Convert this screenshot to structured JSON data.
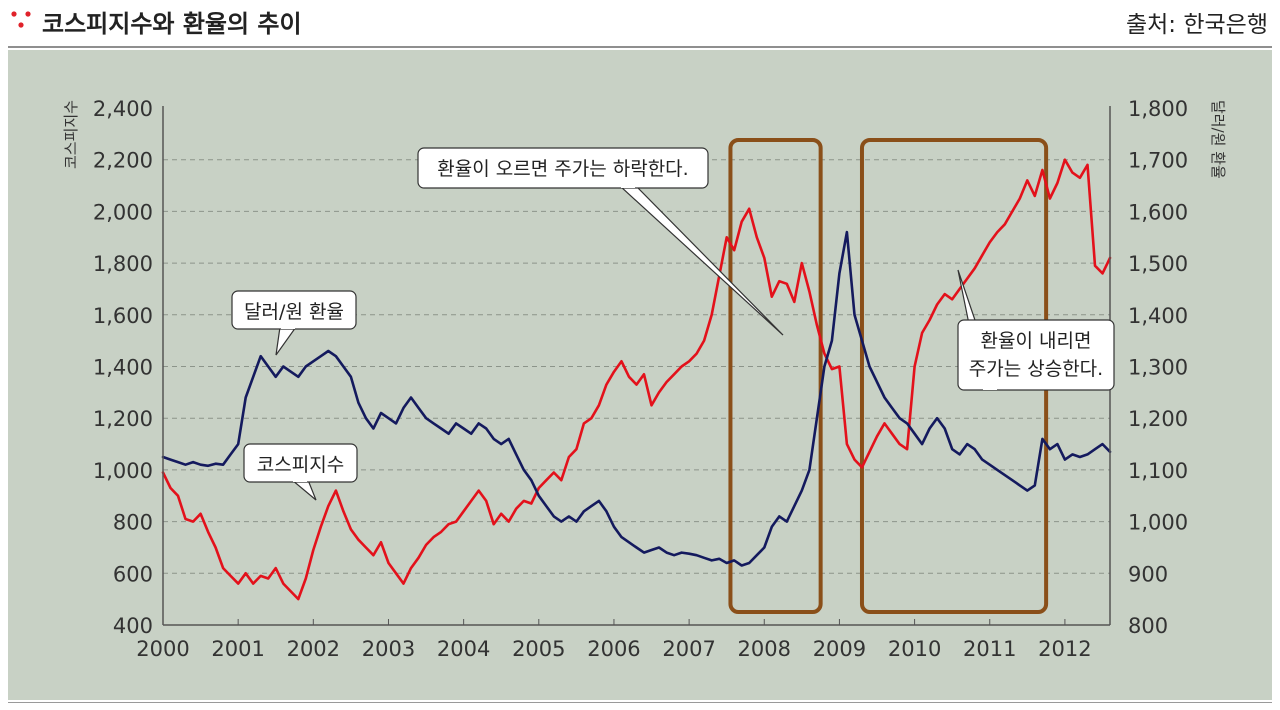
{
  "header": {
    "title": "코스피지수와 환율의 추이",
    "source": "출처: 한국은행"
  },
  "colors": {
    "panel_bg": "#c8d1c5",
    "kospi": "#141a5e",
    "fx": "#e3111b",
    "highlight_box": "#8a4f19",
    "grid": "#8c948a",
    "dots": "#e0222a"
  },
  "chart_data": {
    "type": "line",
    "title": "",
    "x_label": "",
    "y_left_label": "코스피지수",
    "y_right_label": "달러/원 환율",
    "x_range": [
      2000,
      2012.6
    ],
    "y_left_range": [
      400,
      2400
    ],
    "y_right_range": [
      800,
      1800
    ],
    "x_ticks": [
      "2000",
      "2001",
      "2002",
      "2003",
      "2004",
      "2005",
      "2006",
      "2007",
      "2008",
      "2009",
      "2010",
      "2011",
      "2012"
    ],
    "y_left_ticks": [
      "400",
      "600",
      "800",
      "1,000",
      "1,200",
      "1,400",
      "1,600",
      "1,800",
      "2,000",
      "2,200",
      "2,400"
    ],
    "y_right_ticks": [
      "800",
      "900",
      "1,000",
      "1,100",
      "1,200",
      "1,300",
      "1,400",
      "1,500",
      "1,600",
      "1,700",
      "1,800"
    ],
    "grid": "horizontal dashed",
    "series": [
      {
        "name": "코스피지수",
        "axis": "left",
        "points": [
          [
            2000.0,
            990
          ],
          [
            2000.1,
            930
          ],
          [
            2000.2,
            900
          ],
          [
            2000.3,
            810
          ],
          [
            2000.4,
            800
          ],
          [
            2000.5,
            830
          ],
          [
            2000.6,
            760
          ],
          [
            2000.7,
            700
          ],
          [
            2000.8,
            620
          ],
          [
            2000.9,
            590
          ],
          [
            2001.0,
            560
          ],
          [
            2001.1,
            600
          ],
          [
            2001.2,
            560
          ],
          [
            2001.3,
            590
          ],
          [
            2001.4,
            580
          ],
          [
            2001.5,
            620
          ],
          [
            2001.6,
            560
          ],
          [
            2001.7,
            530
          ],
          [
            2001.8,
            500
          ],
          [
            2001.9,
            580
          ],
          [
            2002.0,
            690
          ],
          [
            2002.1,
            780
          ],
          [
            2002.2,
            860
          ],
          [
            2002.3,
            920
          ],
          [
            2002.4,
            840
          ],
          [
            2002.5,
            770
          ],
          [
            2002.6,
            730
          ],
          [
            2002.7,
            700
          ],
          [
            2002.8,
            670
          ],
          [
            2002.9,
            720
          ],
          [
            2003.0,
            640
          ],
          [
            2003.1,
            600
          ],
          [
            2003.2,
            560
          ],
          [
            2003.3,
            620
          ],
          [
            2003.4,
            660
          ],
          [
            2003.5,
            710
          ],
          [
            2003.6,
            740
          ],
          [
            2003.7,
            760
          ],
          [
            2003.8,
            790
          ],
          [
            2003.9,
            800
          ],
          [
            2004.0,
            840
          ],
          [
            2004.1,
            880
          ],
          [
            2004.2,
            920
          ],
          [
            2004.3,
            880
          ],
          [
            2004.4,
            790
          ],
          [
            2004.5,
            830
          ],
          [
            2004.6,
            800
          ],
          [
            2004.7,
            850
          ],
          [
            2004.8,
            880
          ],
          [
            2004.9,
            870
          ],
          [
            2005.0,
            930
          ],
          [
            2005.1,
            960
          ],
          [
            2005.2,
            990
          ],
          [
            2005.3,
            960
          ],
          [
            2005.4,
            1050
          ],
          [
            2005.5,
            1080
          ],
          [
            2005.6,
            1180
          ],
          [
            2005.7,
            1200
          ],
          [
            2005.8,
            1250
          ],
          [
            2005.9,
            1330
          ],
          [
            2006.0,
            1380
          ],
          [
            2006.1,
            1420
          ],
          [
            2006.2,
            1360
          ],
          [
            2006.3,
            1330
          ],
          [
            2006.4,
            1370
          ],
          [
            2006.5,
            1250
          ],
          [
            2006.6,
            1300
          ],
          [
            2006.7,
            1340
          ],
          [
            2006.8,
            1370
          ],
          [
            2006.9,
            1400
          ],
          [
            2007.0,
            1420
          ],
          [
            2007.1,
            1450
          ],
          [
            2007.2,
            1500
          ],
          [
            2007.3,
            1600
          ],
          [
            2007.4,
            1750
          ],
          [
            2007.5,
            1900
          ],
          [
            2007.6,
            1850
          ],
          [
            2007.7,
            1960
          ],
          [
            2007.8,
            2010
          ],
          [
            2007.9,
            1900
          ],
          [
            2008.0,
            1820
          ],
          [
            2008.1,
            1670
          ],
          [
            2008.2,
            1730
          ],
          [
            2008.3,
            1720
          ],
          [
            2008.4,
            1650
          ],
          [
            2008.5,
            1800
          ],
          [
            2008.6,
            1690
          ],
          [
            2008.7,
            1560
          ],
          [
            2008.8,
            1450
          ],
          [
            2008.9,
            1390
          ],
          [
            2009.0,
            1400
          ],
          [
            2009.1,
            1100
          ],
          [
            2009.2,
            1040
          ],
          [
            2009.3,
            1010
          ],
          [
            2009.4,
            1070
          ],
          [
            2009.5,
            1130
          ],
          [
            2009.6,
            1180
          ],
          [
            2009.7,
            1140
          ],
          [
            2009.8,
            1100
          ],
          [
            2009.9,
            1080
          ],
          [
            2010.0,
            1400
          ],
          [
            2010.1,
            1530
          ],
          [
            2010.2,
            1580
          ],
          [
            2010.3,
            1640
          ],
          [
            2010.4,
            1680
          ],
          [
            2010.5,
            1660
          ],
          [
            2010.6,
            1700
          ],
          [
            2010.7,
            1740
          ],
          [
            2010.8,
            1780
          ],
          [
            2010.9,
            1830
          ],
          [
            2011.0,
            1880
          ],
          [
            2011.1,
            1920
          ],
          [
            2011.2,
            1950
          ],
          [
            2011.3,
            2000
          ],
          [
            2011.4,
            2050
          ],
          [
            2011.5,
            2120
          ],
          [
            2011.6,
            2060
          ],
          [
            2011.7,
            2160
          ],
          [
            2011.8,
            2050
          ],
          [
            2011.9,
            2110
          ],
          [
            2012.0,
            2200
          ],
          [
            2012.1,
            2150
          ],
          [
            2012.2,
            2130
          ],
          [
            2012.3,
            2180
          ],
          [
            2012.4,
            1790
          ],
          [
            2012.5,
            1760
          ],
          [
            2012.6,
            1820
          ]
        ]
      },
      {
        "name": "달러/원 환율",
        "axis": "right",
        "points": [
          [
            2000.0,
            1125
          ],
          [
            2000.1,
            1120
          ],
          [
            2000.2,
            1115
          ],
          [
            2000.3,
            1110
          ],
          [
            2000.4,
            1115
          ],
          [
            2000.5,
            1110
          ],
          [
            2000.6,
            1108
          ],
          [
            2000.7,
            1112
          ],
          [
            2000.8,
            1110
          ],
          [
            2000.9,
            1130
          ],
          [
            2001.0,
            1150
          ],
          [
            2001.1,
            1240
          ],
          [
            2001.2,
            1280
          ],
          [
            2001.3,
            1320
          ],
          [
            2001.4,
            1300
          ],
          [
            2001.5,
            1280
          ],
          [
            2001.6,
            1300
          ],
          [
            2001.7,
            1290
          ],
          [
            2001.8,
            1280
          ],
          [
            2001.9,
            1300
          ],
          [
            2002.0,
            1310
          ],
          [
            2002.1,
            1320
          ],
          [
            2002.2,
            1330
          ],
          [
            2002.3,
            1320
          ],
          [
            2002.4,
            1300
          ],
          [
            2002.5,
            1280
          ],
          [
            2002.6,
            1230
          ],
          [
            2002.7,
            1200
          ],
          [
            2002.8,
            1180
          ],
          [
            2002.9,
            1210
          ],
          [
            2003.0,
            1200
          ],
          [
            2003.1,
            1190
          ],
          [
            2003.2,
            1220
          ],
          [
            2003.3,
            1240
          ],
          [
            2003.4,
            1220
          ],
          [
            2003.5,
            1200
          ],
          [
            2003.6,
            1190
          ],
          [
            2003.7,
            1180
          ],
          [
            2003.8,
            1170
          ],
          [
            2003.9,
            1190
          ],
          [
            2004.0,
            1180
          ],
          [
            2004.1,
            1170
          ],
          [
            2004.2,
            1190
          ],
          [
            2004.3,
            1180
          ],
          [
            2004.4,
            1160
          ],
          [
            2004.5,
            1150
          ],
          [
            2004.6,
            1160
          ],
          [
            2004.7,
            1130
          ],
          [
            2004.8,
            1100
          ],
          [
            2004.9,
            1080
          ],
          [
            2005.0,
            1050
          ],
          [
            2005.1,
            1030
          ],
          [
            2005.2,
            1010
          ],
          [
            2005.3,
            1000
          ],
          [
            2005.4,
            1010
          ],
          [
            2005.5,
            1000
          ],
          [
            2005.6,
            1020
          ],
          [
            2005.7,
            1030
          ],
          [
            2005.8,
            1040
          ],
          [
            2005.9,
            1020
          ],
          [
            2006.0,
            990
          ],
          [
            2006.1,
            970
          ],
          [
            2006.2,
            960
          ],
          [
            2006.3,
            950
          ],
          [
            2006.4,
            940
          ],
          [
            2006.5,
            945
          ],
          [
            2006.6,
            950
          ],
          [
            2006.7,
            940
          ],
          [
            2006.8,
            935
          ],
          [
            2006.9,
            940
          ],
          [
            2007.0,
            938
          ],
          [
            2007.1,
            935
          ],
          [
            2007.2,
            930
          ],
          [
            2007.3,
            925
          ],
          [
            2007.4,
            928
          ],
          [
            2007.5,
            920
          ],
          [
            2007.6,
            925
          ],
          [
            2007.7,
            915
          ],
          [
            2007.8,
            920
          ],
          [
            2007.9,
            935
          ],
          [
            2008.0,
            950
          ],
          [
            2008.1,
            990
          ],
          [
            2008.2,
            1010
          ],
          [
            2008.3,
            1000
          ],
          [
            2008.4,
            1030
          ],
          [
            2008.5,
            1060
          ],
          [
            2008.6,
            1100
          ],
          [
            2008.7,
            1200
          ],
          [
            2008.8,
            1300
          ],
          [
            2008.9,
            1350
          ],
          [
            2009.0,
            1480
          ],
          [
            2009.1,
            1560
          ],
          [
            2009.2,
            1400
          ],
          [
            2009.3,
            1350
          ],
          [
            2009.4,
            1300
          ],
          [
            2009.5,
            1270
          ],
          [
            2009.6,
            1240
          ],
          [
            2009.7,
            1220
          ],
          [
            2009.8,
            1200
          ],
          [
            2009.9,
            1190
          ],
          [
            2010.0,
            1170
          ],
          [
            2010.1,
            1150
          ],
          [
            2010.2,
            1180
          ],
          [
            2010.3,
            1200
          ],
          [
            2010.4,
            1180
          ],
          [
            2010.5,
            1140
          ],
          [
            2010.6,
            1130
          ],
          [
            2010.7,
            1150
          ],
          [
            2010.8,
            1140
          ],
          [
            2010.9,
            1120
          ],
          [
            2011.0,
            1110
          ],
          [
            2011.1,
            1100
          ],
          [
            2011.2,
            1090
          ],
          [
            2011.3,
            1080
          ],
          [
            2011.4,
            1070
          ],
          [
            2011.5,
            1060
          ],
          [
            2011.6,
            1070
          ],
          [
            2011.7,
            1160
          ],
          [
            2011.8,
            1140
          ],
          [
            2011.9,
            1150
          ],
          [
            2012.0,
            1120
          ],
          [
            2012.1,
            1130
          ],
          [
            2012.2,
            1125
          ],
          [
            2012.3,
            1130
          ],
          [
            2012.4,
            1140
          ],
          [
            2012.5,
            1150
          ],
          [
            2012.6,
            1135
          ]
        ]
      }
    ],
    "highlight_boxes": [
      {
        "x_from": 2007.55,
        "x_to": 2008.75,
        "label": "환율이 오르면 주가는 하락한다."
      },
      {
        "x_from": 2009.3,
        "x_to": 2011.75,
        "label": "환율이 내리면 주가는 상승한다."
      }
    ],
    "callouts": [
      {
        "target": "달러/원 환율",
        "text": "달러/원 환율"
      },
      {
        "target": "코스피지수",
        "text": "코스피지수"
      },
      {
        "target": "box1",
        "text": "환율이 오르면 주가는 하락한다."
      },
      {
        "target": "box2",
        "lines": [
          "환율이 내리면",
          "주가는 상승한다."
        ]
      }
    ]
  }
}
